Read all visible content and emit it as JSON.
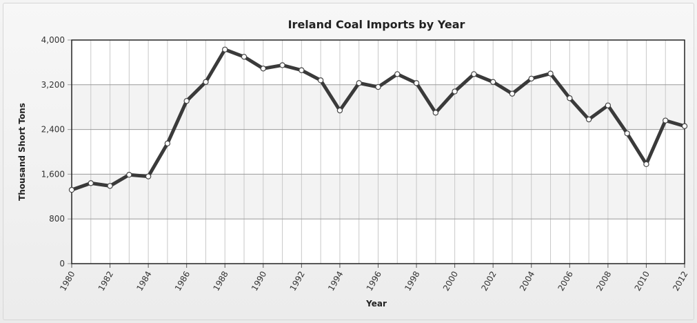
{
  "chart_data": {
    "type": "line",
    "title": "Ireland Coal Imports by Year",
    "xlabel": "Year",
    "ylabel": "Thousand Short Tons",
    "ylim": [
      0,
      4000
    ],
    "y_ticks": [
      "0",
      "800",
      "1,600",
      "2,400",
      "3,200",
      "4,000"
    ],
    "y_tick_values": [
      0,
      800,
      1600,
      2400,
      3200,
      4000
    ],
    "x_tick_labels": [
      "1980",
      "1982",
      "1984",
      "1986",
      "1988",
      "1990",
      "1992",
      "1994",
      "1996",
      "1998",
      "2000",
      "2002",
      "2004",
      "2006",
      "2008",
      "2010",
      "2012"
    ],
    "grid": true,
    "series": [
      {
        "color": "#3a3a3a",
        "x": [
          1980,
          1981,
          1982,
          1983,
          1984,
          1985,
          1986,
          1987,
          1988,
          1989,
          1990,
          1991,
          1992,
          1993,
          1994,
          1995,
          1996,
          1997,
          1998,
          1999,
          2000,
          2001,
          2002,
          2003,
          2004,
          2005,
          2006,
          2007,
          2008,
          2009,
          2010,
          2011,
          2012
        ],
        "values": [
          1320,
          1440,
          1390,
          1590,
          1560,
          2150,
          2910,
          3250,
          3830,
          3700,
          3490,
          3550,
          3460,
          3280,
          2740,
          3230,
          3160,
          3390,
          3230,
          2700,
          3080,
          3390,
          3250,
          3040,
          3310,
          3400,
          2960,
          2580,
          2830,
          2330,
          1780,
          2560,
          2460
        ]
      }
    ]
  }
}
